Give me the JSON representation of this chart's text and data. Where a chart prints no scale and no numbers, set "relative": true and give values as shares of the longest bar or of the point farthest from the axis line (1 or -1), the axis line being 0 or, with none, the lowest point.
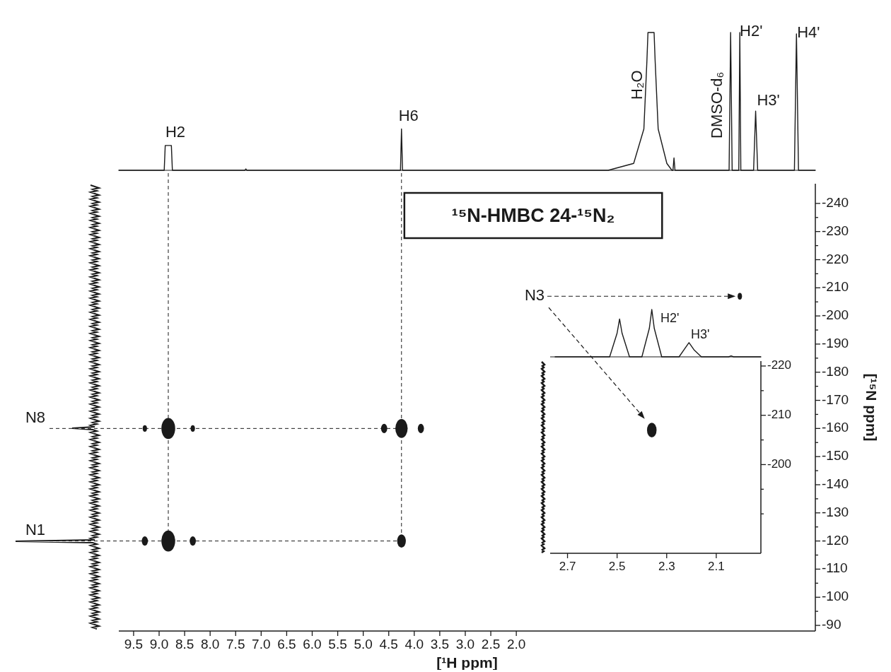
{
  "chart_data": [
    {
      "type": "line",
      "relative": true,
      "color": "#1a1a1a",
      "tick_labels": false,
      "xlim": [
        9.79,
        -3.86
      ],
      "x": [
        9.79,
        8.9,
        8.88,
        8.86,
        8.78,
        8.76,
        8.74,
        7.32,
        7.3,
        7.28,
        4.3,
        4.27,
        4.25,
        4.23,
        4.2,
        0.2,
        -0.3,
        -0.5,
        -0.56,
        -0.58,
        -0.7,
        -0.72,
        -0.78,
        -0.95,
        -1.05,
        -1.07,
        -1.09,
        -1.11,
        -2.12,
        -2.17,
        -2.2,
        -2.23,
        -2.28,
        -2.33,
        -2.36,
        -2.38,
        -2.4,
        -2.44,
        -2.6,
        -2.65,
        -2.69,
        -2.73,
        -2.78,
        -3.42,
        -3.45,
        -3.49,
        -3.53,
        -3.56,
        -3.86
      ],
      "values": [
        0,
        0,
        0.18,
        0.18,
        0.18,
        0.18,
        0,
        0,
        0.01,
        0,
        0,
        0,
        0.3,
        0,
        0,
        0,
        0.05,
        0.3,
        0.8,
        1,
        1,
        0.8,
        0.3,
        0.05,
        0,
        0,
        0.09,
        0,
        0,
        0,
        1,
        0,
        0,
        0,
        0,
        1,
        0,
        0,
        0,
        0,
        0.43,
        0,
        0,
        0,
        0,
        0.99,
        0,
        0,
        0
      ],
      "annotations": [
        {
          "text": "H2",
          "x": 8.82,
          "y": 0.18
        },
        {
          "text": "H6",
          "x": 4.25,
          "y": 0.3
        },
        {
          "text": "H₂O",
          "x": -0.63,
          "y": 1
        },
        {
          "text": "DMSO-d₆",
          "x": -2.2,
          "y": 1
        },
        {
          "text": "H2'",
          "x": -2.38,
          "y": 1
        },
        {
          "text": "H3'",
          "x": -2.69,
          "y": 0.43
        },
        {
          "text": "H4'",
          "x": -3.49,
          "y": 0.99
        }
      ]
    },
    {
      "type": "bubble",
      "title": "¹⁵N-HMBC 24-¹⁵N₂",
      "xlabel": "[¹H ppm]",
      "ylabel": "[¹⁵N ppm]",
      "color": "#1a1a1a",
      "xlim": [
        9.79,
        -3.86
      ],
      "ylim": [
        -88,
        -247
      ],
      "xticks": [
        9.5,
        {
          "value": 9,
          "label": "9.0"
        },
        8.5,
        {
          "value": 8,
          "label": "8.0"
        },
        7.5,
        {
          "value": 7,
          "label": "7.0"
        },
        6.5,
        {
          "value": 6,
          "label": "6.0"
        },
        5.5,
        {
          "value": 5,
          "label": "5.0"
        },
        4.5,
        {
          "value": 4,
          "label": "4.0"
        },
        3.5,
        {
          "value": 3,
          "label": "3.0"
        },
        2.5,
        {
          "value": 2,
          "label": "2.0"
        }
      ],
      "yticks": [
        -240,
        {
          "value": -235,
          "label": null
        },
        -230,
        {
          "value": -225,
          "label": null
        },
        -220,
        {
          "value": -215,
          "label": null
        },
        -210,
        {
          "value": -205,
          "label": null
        },
        -200,
        {
          "value": -195,
          "label": null
        },
        -190,
        {
          "value": -185,
          "label": null
        },
        -180,
        {
          "value": -175,
          "label": null
        },
        -170,
        {
          "value": -165,
          "label": null
        },
        -160,
        {
          "value": -155,
          "label": null
        },
        -150,
        {
          "value": -145,
          "label": null
        },
        -140,
        {
          "value": -135,
          "label": null
        },
        -130,
        {
          "value": -125,
          "label": null
        },
        -120,
        {
          "value": -115,
          "label": null
        },
        -110,
        {
          "value": -105,
          "label": null
        },
        -100,
        {
          "value": -95,
          "label": null
        },
        -90
      ],
      "x": [
        8.82,
        8.82,
        4.25,
        4.25,
        9.28,
        8.34,
        9.28,
        8.34,
        4.59,
        3.87,
        -2.38
      ],
      "values": [
        -160,
        -120,
        -160,
        -120,
        -120,
        -120,
        -160,
        -160,
        -160,
        -160,
        -207
      ],
      "sizes": [
        1,
        1,
        0.8,
        0.4,
        0.2,
        0.2,
        0.1,
        0.1,
        0.2,
        0.2,
        0.1
      ],
      "ref_lines": [
        {
          "axis": "x",
          "value": 8.82,
          "label": null,
          "line_style": "dashed"
        },
        {
          "axis": "x",
          "value": 4.25,
          "label": null,
          "line_style": "dashed"
        },
        {
          "axis": "y",
          "value": -160,
          "label": "N8",
          "line_style": "dashed"
        },
        {
          "axis": "y",
          "value": -120,
          "label": "N1",
          "line_style": "dashed"
        }
      ],
      "annotations": [
        "N3"
      ]
    },
    {
      "type": "bubble",
      "color": "#1a1a1a",
      "xlim": [
        2.77,
        1.92
      ],
      "ylim": [
        -182,
        -221
      ],
      "xticks": [
        2.7,
        2.5,
        2.3,
        2.1
      ],
      "yticks": [
        -220,
        {
          "value": -215,
          "label": null
        },
        -210,
        {
          "value": -205,
          "label": null
        },
        -200,
        {
          "value": -195,
          "label": null
        },
        {
          "value": -190,
          "label": null
        }
      ],
      "x": [
        2.36
      ],
      "values": [
        -207
      ],
      "sizes": [
        1
      ]
    },
    {
      "type": "line",
      "relative": true,
      "color": "#1a1a1a",
      "tick_labels": false,
      "xlim": [
        2.77,
        1.92
      ],
      "x": [
        2.75,
        2.53,
        2.5,
        2.49,
        2.48,
        2.45,
        2.4,
        2.37,
        2.36,
        2.35,
        2.32,
        2.25,
        2.23,
        2.21,
        2.19,
        2.16,
        2.05,
        2.04,
        2.03,
        1.92
      ],
      "values": [
        0,
        0,
        0.5,
        0.8,
        0.5,
        0,
        0,
        0.6,
        1,
        0.6,
        0,
        0,
        0.15,
        0.3,
        0.15,
        0,
        0,
        0.02,
        0,
        0
      ],
      "annotations": [
        {
          "text": "H2'",
          "x": 2.35,
          "y": 1
        },
        {
          "text": "H3'",
          "x": 2.21,
          "y": 0.3
        }
      ]
    }
  ]
}
